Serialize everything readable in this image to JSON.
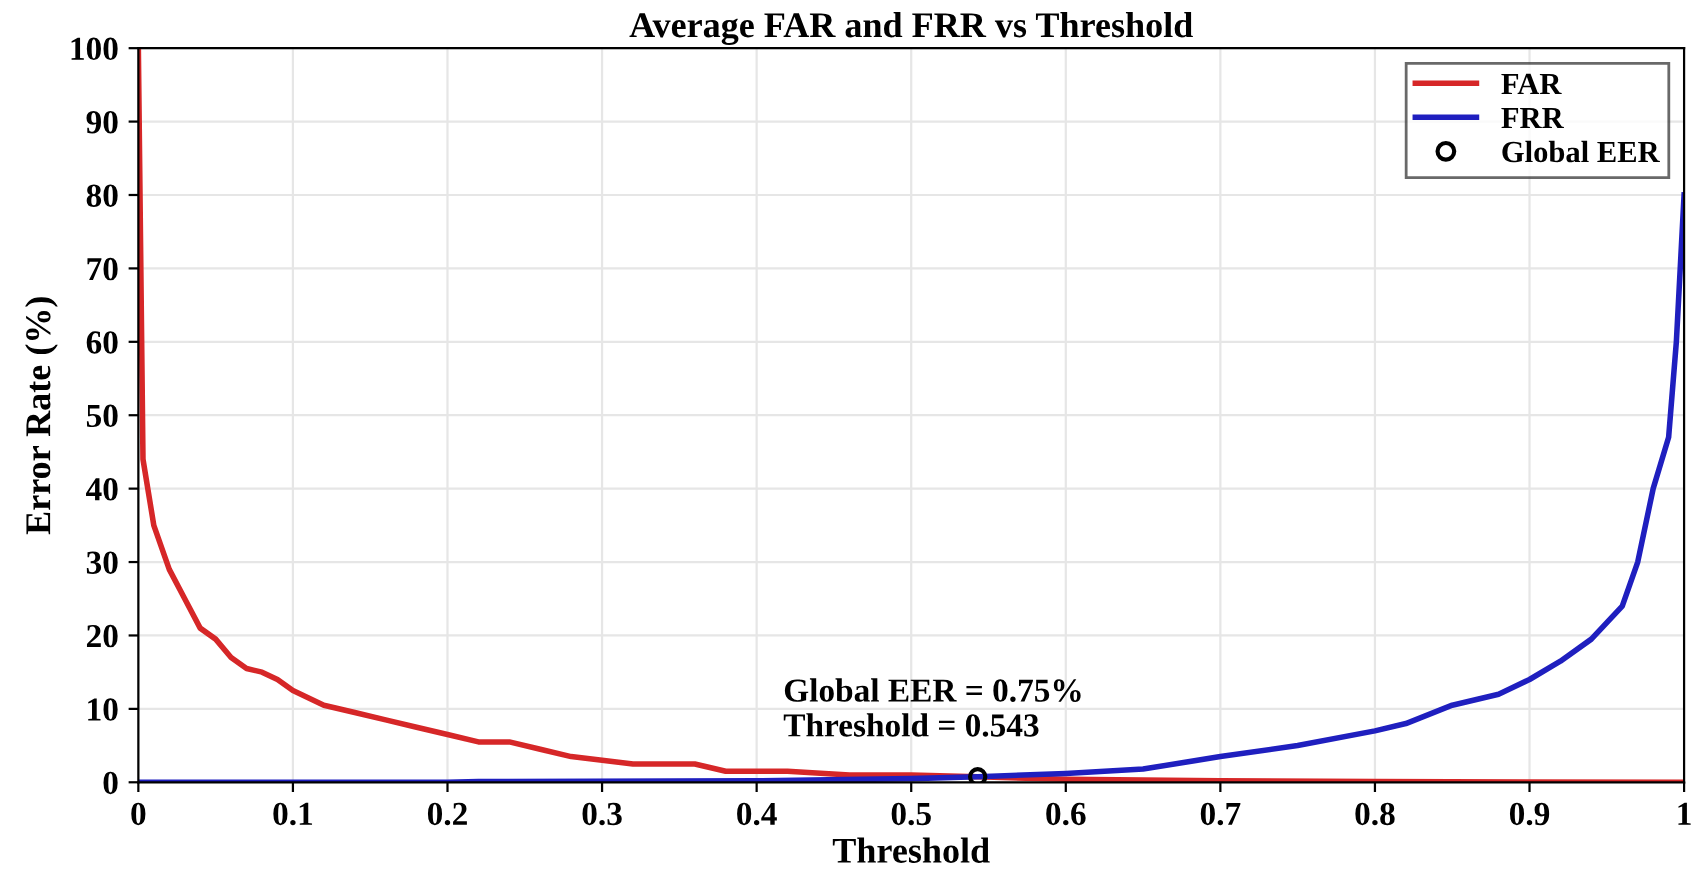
{
  "chart_data": {
    "type": "line",
    "title": "Average FAR and FRR vs Threshold",
    "xlabel": "Threshold",
    "ylabel": "Error Rate (%)",
    "series": [
      {
        "name": "FAR",
        "color": "#d62728",
        "x": [
          0,
          0.003,
          0.01,
          0.02,
          0.03,
          0.04,
          0.05,
          0.06,
          0.07,
          0.08,
          0.09,
          0.1,
          0.12,
          0.14,
          0.16,
          0.18,
          0.2,
          0.22,
          0.24,
          0.26,
          0.28,
          0.3,
          0.32,
          0.36,
          0.38,
          0.42,
          0.46,
          0.5,
          0.543,
          0.6,
          0.7,
          0.8,
          1
        ],
        "values": [
          100,
          44,
          35,
          29,
          25,
          21,
          19.5,
          17,
          15.5,
          15,
          14,
          12.5,
          10.5,
          9.5,
          8.5,
          7.5,
          6.5,
          5.5,
          5.5,
          4.5,
          3.5,
          3,
          2.5,
          2.5,
          1.5,
          1.5,
          1,
          1,
          0.75,
          0.4,
          0.2,
          0.1,
          0
        ]
      },
      {
        "name": "FRR",
        "color": "#1f1fbf",
        "x": [
          0,
          0.2,
          0.22,
          0.4,
          0.5,
          0.543,
          0.6,
          0.65,
          0.7,
          0.75,
          0.8,
          0.82,
          0.85,
          0.88,
          0.9,
          0.92,
          0.94,
          0.96,
          0.97,
          0.98,
          0.99,
          0.995,
          1
        ],
        "values": [
          0,
          0,
          0.1,
          0.2,
          0.5,
          0.75,
          1.2,
          1.8,
          3.5,
          5,
          7,
          8,
          10.5,
          12,
          14,
          16.5,
          19.5,
          24,
          30,
          40,
          47,
          60,
          80
        ]
      },
      {
        "name": "Global EER",
        "type": "scatter",
        "marker": "circle",
        "color": "#000000",
        "x": [
          0.543
        ],
        "values": [
          0.75
        ]
      }
    ],
    "annotations": [
      {
        "text": "Global EER = 0.75%\nThreshold = 0.543",
        "x": 0.543,
        "y": 0.75
      }
    ],
    "xlim": [
      0,
      1
    ],
    "ylim": [
      0,
      100
    ],
    "xticks": [
      0,
      0.1,
      0.2,
      0.3,
      0.4,
      0.5,
      0.6,
      0.7,
      0.8,
      0.9,
      1
    ],
    "yticks": [
      0,
      10,
      20,
      30,
      40,
      50,
      60,
      70,
      80,
      90,
      100
    ],
    "grid": true,
    "legend": "top right"
  }
}
